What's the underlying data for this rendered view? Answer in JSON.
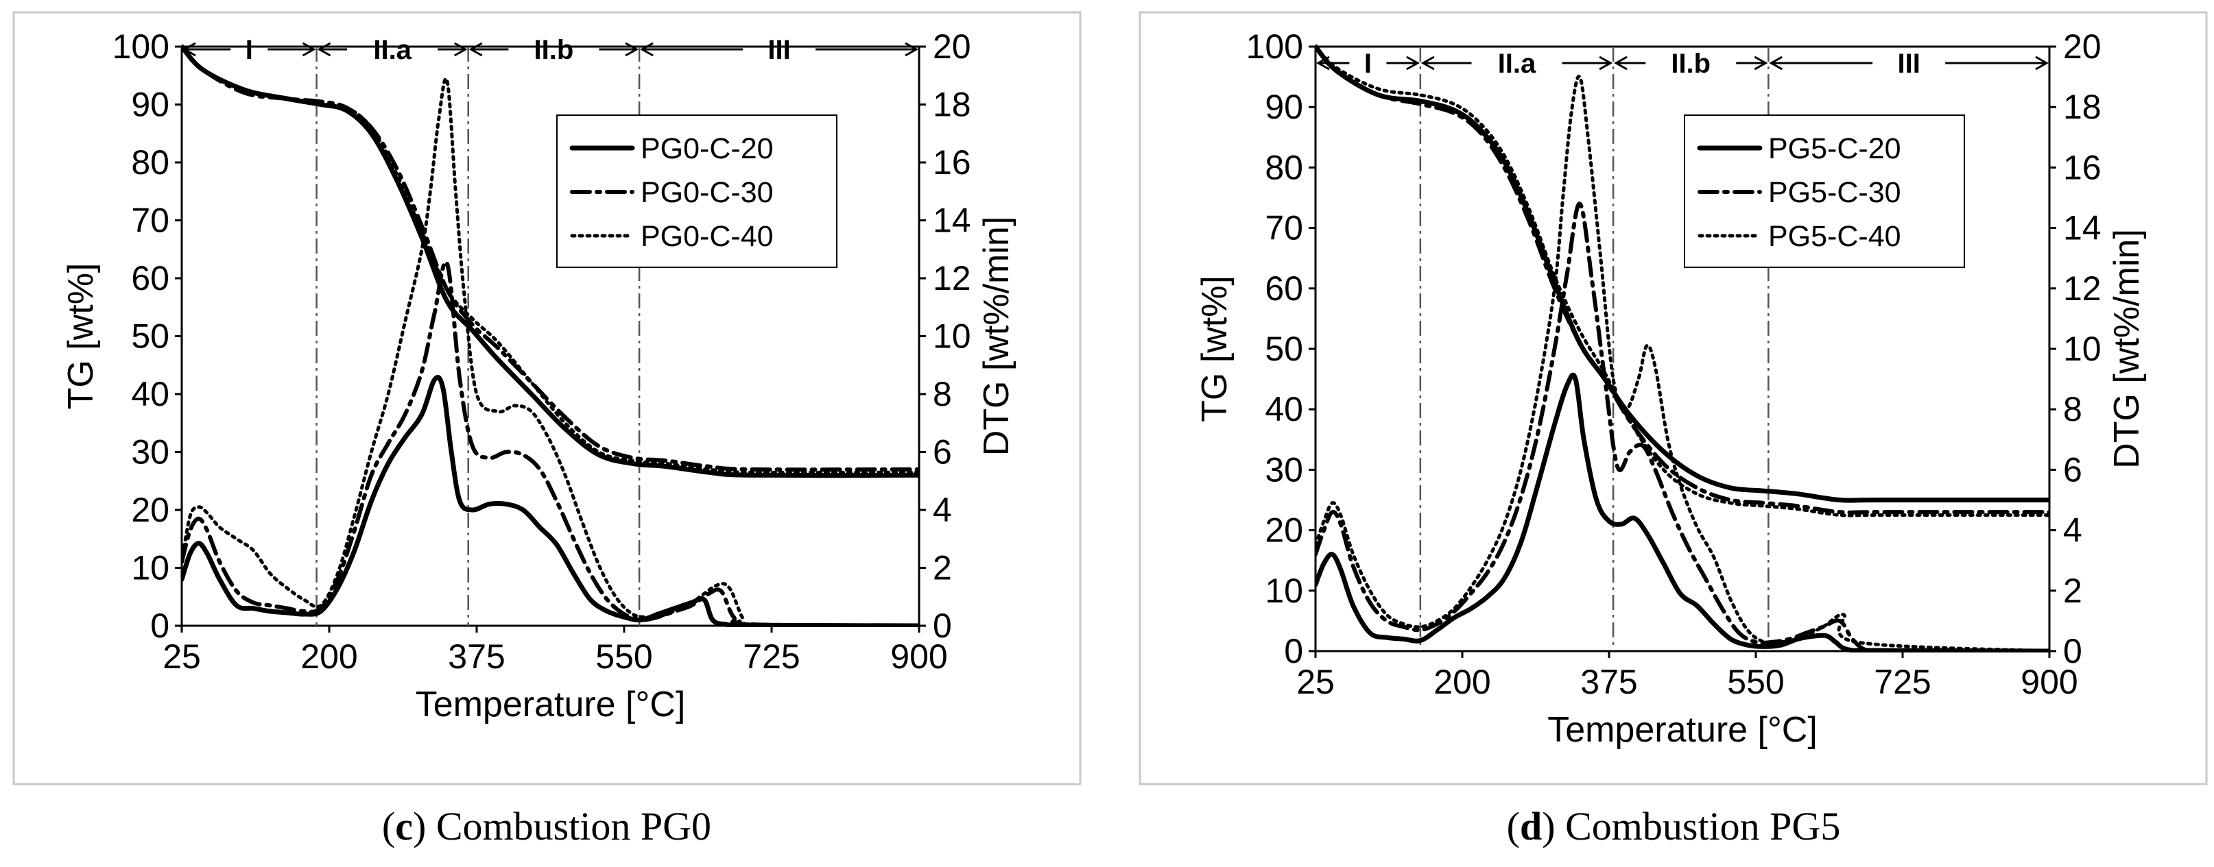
{
  "chart_data": [
    {
      "type": "line",
      "id": "c",
      "caption_letter": "c",
      "caption_text": "Combustion PG0",
      "xlabel": "Temperature [°C]",
      "ylabel_left": "TG [wt%]",
      "ylabel_right": "DTG [wt%/min]",
      "xlim": [
        25,
        900
      ],
      "ylim_left": [
        0,
        100
      ],
      "ylim_right": [
        0,
        20
      ],
      "xticks": [
        "25",
        "200",
        "375",
        "550",
        "725",
        "900"
      ],
      "yticks_left": [
        "0",
        "10",
        "20",
        "30",
        "40",
        "50",
        "60",
        "70",
        "80",
        "90",
        "100"
      ],
      "yticks_right": [
        "0",
        "2",
        "4",
        "6",
        "8",
        "10",
        "12",
        "14",
        "16",
        "18",
        "20"
      ],
      "legend": [
        "PG0-C-20",
        "PG0-C-30",
        "PG0-C-40"
      ],
      "legend_position": "top-right",
      "region_boundaries": [
        185,
        365,
        568
      ],
      "regions": [
        {
          "label": "I",
          "from": 25,
          "to": 185
        },
        {
          "label": "II.a",
          "from": 185,
          "to": 365
        },
        {
          "label": "II.b",
          "from": 365,
          "to": 568
        },
        {
          "label": "III",
          "from": 568,
          "to": 900
        }
      ],
      "tg_series": [
        {
          "name": "PG0-C-20",
          "style": "solid",
          "x": [
            25,
            50,
            100,
            150,
            190,
            220,
            250,
            280,
            310,
            340,
            370,
            400,
            440,
            480,
            520,
            560,
            600,
            650,
            700,
            900
          ],
          "y": [
            100,
            96,
            92.5,
            91,
            90,
            89,
            85,
            77,
            67,
            56,
            51,
            46,
            40,
            34,
            29.5,
            28,
            27.5,
            26.5,
            26,
            26
          ]
        },
        {
          "name": "PG0-C-30",
          "style": "dashdot",
          "x": [
            25,
            50,
            100,
            150,
            190,
            220,
            250,
            280,
            310,
            340,
            370,
            400,
            440,
            480,
            520,
            560,
            600,
            650,
            700,
            900
          ],
          "y": [
            100,
            96,
            92,
            91,
            90.5,
            89.5,
            86,
            79,
            69,
            58,
            52,
            48,
            42,
            36,
            31,
            29,
            28.5,
            27.5,
            27,
            27
          ]
        },
        {
          "name": "PG0-C-40",
          "style": "dotted",
          "x": [
            25,
            50,
            100,
            150,
            190,
            220,
            250,
            280,
            310,
            340,
            370,
            400,
            440,
            480,
            520,
            560,
            600,
            650,
            700,
            900
          ],
          "y": [
            100,
            96,
            92.5,
            91,
            90,
            89.5,
            86,
            78,
            68,
            58,
            53,
            49,
            42,
            35,
            30,
            28.5,
            28,
            27,
            26.5,
            26.5
          ]
        }
      ],
      "dtg_series": [
        {
          "name": "PG0-C-20",
          "style": "solid",
          "x": [
            25,
            35,
            45,
            55,
            70,
            90,
            110,
            130,
            150,
            170,
            190,
            210,
            230,
            250,
            270,
            290,
            310,
            325,
            335,
            345,
            355,
            370,
            390,
            410,
            430,
            450,
            470,
            490,
            510,
            530,
            550,
            570,
            590,
            610,
            630,
            645,
            655,
            670,
            700,
            900
          ],
          "y": [
            1.6,
            2.5,
            2.85,
            2.5,
            1.6,
            0.7,
            0.6,
            0.5,
            0.45,
            0.4,
            0.5,
            1.3,
            2.6,
            4.3,
            5.6,
            6.5,
            7.3,
            8.5,
            8.2,
            6,
            4.3,
            4.0,
            4.2,
            4.2,
            4.0,
            3.4,
            2.8,
            1.8,
            0.9,
            0.5,
            0.3,
            0.2,
            0.4,
            0.6,
            0.8,
            0.9,
            0.2,
            0.05,
            0.02,
            0
          ]
        },
        {
          "name": "PG0-C-30",
          "style": "dashdot",
          "x": [
            25,
            35,
            45,
            55,
            70,
            90,
            110,
            130,
            150,
            170,
            190,
            210,
            230,
            250,
            270,
            290,
            310,
            325,
            340,
            355,
            370,
            390,
            410,
            430,
            450,
            470,
            490,
            510,
            530,
            550,
            570,
            590,
            610,
            630,
            650,
            665,
            680,
            700,
            900
          ],
          "y": [
            2.2,
            3.3,
            3.7,
            3.3,
            2.2,
            1.2,
            0.8,
            0.7,
            0.6,
            0.5,
            0.6,
            1.6,
            3.3,
            5.2,
            6.3,
            7.3,
            8.8,
            10.8,
            12.5,
            8.5,
            6.2,
            5.8,
            6.0,
            5.9,
            5.4,
            4.3,
            3.0,
            1.8,
            0.9,
            0.4,
            0.2,
            0.3,
            0.5,
            0.7,
            1.1,
            1.2,
            0.3,
            0.05,
            0
          ]
        },
        {
          "name": "PG0-C-40",
          "style": "dotted",
          "x": [
            25,
            35,
            45,
            55,
            70,
            90,
            110,
            130,
            150,
            170,
            190,
            210,
            230,
            250,
            270,
            290,
            310,
            320,
            330,
            340,
            350,
            360,
            375,
            400,
            420,
            440,
            460,
            480,
            500,
            520,
            540,
            560,
            580,
            600,
            630,
            660,
            675,
            690,
            700,
            900
          ],
          "y": [
            2.2,
            3.8,
            4.1,
            3.9,
            3.4,
            3.0,
            2.6,
            1.8,
            1.3,
            0.9,
            0.7,
            1.8,
            3.8,
            6.0,
            8.0,
            10.5,
            13.0,
            15.0,
            17.5,
            18.8,
            15,
            11.5,
            8.0,
            7.4,
            7.6,
            7.4,
            6.5,
            5.2,
            3.6,
            2.1,
            1.0,
            0.4,
            0.3,
            0.4,
            0.8,
            1.4,
            1.3,
            0.3,
            0.05,
            0
          ]
        }
      ]
    },
    {
      "type": "line",
      "id": "d",
      "caption_letter": "d",
      "caption_text": "Combustion PG5",
      "xlabel": "Temperature [°C]",
      "ylabel_left": "TG [wt%]",
      "ylabel_right": "DTG [wt%/min]",
      "xlim": [
        25,
        900
      ],
      "ylim_left": [
        0,
        100
      ],
      "ylim_right": [
        0,
        20
      ],
      "xticks": [
        "25",
        "200",
        "375",
        "550",
        "725",
        "900"
      ],
      "yticks_left": [
        "0",
        "10",
        "20",
        "30",
        "40",
        "50",
        "60",
        "70",
        "80",
        "90",
        "100"
      ],
      "yticks_right": [
        "0",
        "2",
        "4",
        "6",
        "8",
        "10",
        "12",
        "14",
        "16",
        "18",
        "20"
      ],
      "legend": [
        "PG5-C-20",
        "PG5-C-30",
        "PG5-C-40"
      ],
      "legend_position": "top-right",
      "region_boundaries": [
        150,
        380,
        565
      ],
      "regions": [
        {
          "label": "I",
          "from": 25,
          "to": 150
        },
        {
          "label": "II.a",
          "from": 150,
          "to": 380
        },
        {
          "label": "II.b",
          "from": 380,
          "to": 565
        },
        {
          "label": "III",
          "from": 565,
          "to": 900
        }
      ],
      "tg_series": [
        {
          "name": "PG5-C-20",
          "style": "solid",
          "x": [
            25,
            50,
            100,
            150,
            190,
            220,
            250,
            280,
            310,
            340,
            370,
            400,
            440,
            480,
            520,
            560,
            600,
            650,
            700,
            900
          ],
          "y": [
            100,
            96,
            92,
            91,
            89.5,
            86.5,
            81,
            72,
            61,
            51,
            45,
            39,
            33,
            29,
            27,
            26.5,
            26,
            25,
            25,
            25
          ]
        },
        {
          "name": "PG5-C-30",
          "style": "dashdot",
          "x": [
            25,
            50,
            100,
            150,
            190,
            220,
            250,
            280,
            310,
            340,
            370,
            400,
            440,
            480,
            520,
            560,
            600,
            650,
            700,
            900
          ],
          "y": [
            100,
            96,
            92,
            90.5,
            89,
            86,
            80,
            71,
            60,
            51,
            45,
            38,
            31,
            27,
            25,
            24.5,
            24,
            23,
            23,
            23
          ]
        },
        {
          "name": "PG5-C-40",
          "style": "dotted",
          "x": [
            25,
            50,
            100,
            150,
            190,
            220,
            250,
            280,
            310,
            340,
            370,
            400,
            440,
            480,
            520,
            560,
            600,
            650,
            700,
            900
          ],
          "y": [
            100,
            96.5,
            93,
            92,
            90.5,
            87.5,
            82,
            73,
            62,
            53,
            46,
            38,
            30,
            26,
            24.5,
            24,
            23.5,
            22.5,
            22.5,
            22.5
          ]
        }
      ],
      "dtg_series": [
        {
          "name": "PG5-C-20",
          "style": "solid",
          "x": [
            25,
            35,
            45,
            55,
            70,
            90,
            110,
            130,
            150,
            170,
            190,
            210,
            230,
            250,
            270,
            290,
            310,
            325,
            335,
            345,
            360,
            375,
            390,
            405,
            420,
            440,
            460,
            480,
            500,
            520,
            540,
            560,
            580,
            600,
            620,
            635,
            645,
            660,
            700,
            900
          ],
          "y": [
            2.2,
            2.9,
            3.2,
            2.7,
            1.5,
            0.6,
            0.45,
            0.4,
            0.35,
            0.7,
            1.1,
            1.4,
            1.8,
            2.4,
            3.6,
            5.5,
            7.5,
            8.8,
            9.0,
            7.0,
            5.0,
            4.3,
            4.2,
            4.4,
            3.9,
            2.9,
            1.9,
            1.5,
            0.9,
            0.4,
            0.2,
            0.15,
            0.2,
            0.4,
            0.5,
            0.5,
            0.3,
            0.05,
            0.02,
            0
          ]
        },
        {
          "name": "PG5-C-30",
          "style": "dashdot",
          "x": [
            25,
            35,
            45,
            55,
            70,
            90,
            110,
            130,
            150,
            170,
            190,
            210,
            230,
            250,
            270,
            290,
            310,
            325,
            340,
            355,
            370,
            385,
            400,
            415,
            430,
            450,
            470,
            490,
            510,
            530,
            550,
            570,
            590,
            610,
            630,
            650,
            665,
            680,
            700,
            900
          ],
          "y": [
            3.2,
            4.0,
            4.6,
            4.2,
            2.8,
            1.6,
            1.0,
            0.8,
            0.7,
            0.9,
            1.3,
            1.9,
            2.6,
            3.6,
            5.1,
            7.2,
            10.0,
            12.5,
            14.8,
            12.2,
            9.0,
            6.1,
            6.6,
            6.8,
            6.0,
            4.6,
            3.4,
            2.4,
            1.4,
            0.6,
            0.3,
            0.3,
            0.4,
            0.6,
            0.8,
            1.0,
            0.4,
            0.05,
            0.02,
            0
          ]
        },
        {
          "name": "PG5-C-40",
          "style": "dotted",
          "x": [
            25,
            35,
            45,
            55,
            70,
            90,
            110,
            130,
            150,
            170,
            190,
            210,
            230,
            250,
            270,
            290,
            310,
            320,
            330,
            340,
            350,
            365,
            380,
            395,
            410,
            420,
            430,
            445,
            460,
            480,
            500,
            520,
            540,
            560,
            580,
            600,
            630,
            655,
            670,
            900
          ],
          "y": [
            3.5,
            4.3,
            4.9,
            4.5,
            3.2,
            2.0,
            1.2,
            0.9,
            0.8,
            1.0,
            1.4,
            2.1,
            3.0,
            4.2,
            6.0,
            8.6,
            12.0,
            15.0,
            17.8,
            19.0,
            17.0,
            13.0,
            9.0,
            8.0,
            9.0,
            10.1,
            9.4,
            7.0,
            5.5,
            4.1,
            3.1,
            1.7,
            0.7,
            0.3,
            0.3,
            0.4,
            0.8,
            1.2,
            0.3,
            0
          ]
        }
      ]
    }
  ]
}
